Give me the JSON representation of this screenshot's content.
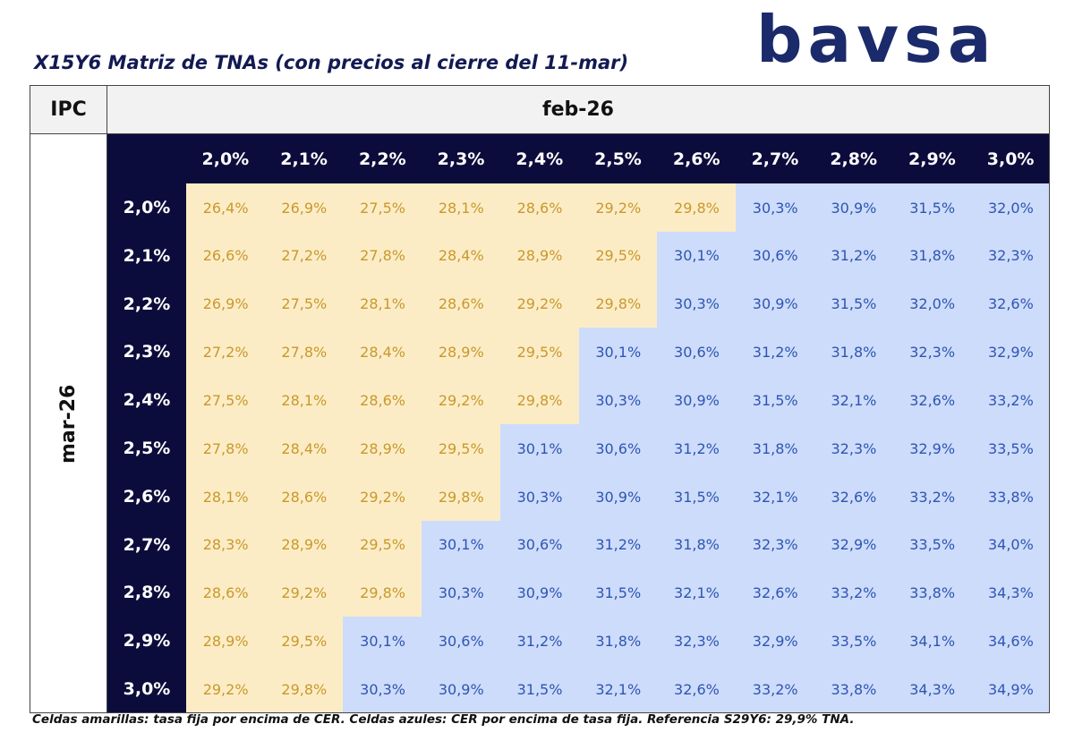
{
  "header": {
    "title": "X15Y6 Matriz de TNAs (con precios al cierre del 11-mar)",
    "logo": "bavsa"
  },
  "table": {
    "corner": "IPC",
    "column_group": "feb-26",
    "row_group": "mar-26",
    "columns": [
      "2,0%",
      "2,1%",
      "2,2%",
      "2,3%",
      "2,4%",
      "2,5%",
      "2,6%",
      "2,7%",
      "2,8%",
      "2,9%",
      "3,0%"
    ],
    "palette": {
      "yellow": {
        "fill": "#fcecc6",
        "text": "#c8992c"
      },
      "blue": {
        "fill": "#cddcfa",
        "text": "#2f55b3"
      }
    },
    "rows": [
      {
        "label": "2,0%",
        "cells": [
          "26,4%",
          "26,9%",
          "27,5%",
          "28,1%",
          "28,6%",
          "29,2%",
          "29,8%",
          "30,3%",
          "30,9%",
          "31,5%",
          "32,0%"
        ],
        "fills": [
          "yellow",
          "yellow",
          "yellow",
          "yellow",
          "yellow",
          "yellow",
          "yellow",
          "blue",
          "blue",
          "blue",
          "blue"
        ]
      },
      {
        "label": "2,1%",
        "cells": [
          "26,6%",
          "27,2%",
          "27,8%",
          "28,4%",
          "28,9%",
          "29,5%",
          "30,1%",
          "30,6%",
          "31,2%",
          "31,8%",
          "32,3%"
        ],
        "fills": [
          "yellow",
          "yellow",
          "yellow",
          "yellow",
          "yellow",
          "yellow",
          "blue",
          "blue",
          "blue",
          "blue",
          "blue"
        ]
      },
      {
        "label": "2,2%",
        "cells": [
          "26,9%",
          "27,5%",
          "28,1%",
          "28,6%",
          "29,2%",
          "29,8%",
          "30,3%",
          "30,9%",
          "31,5%",
          "32,0%",
          "32,6%"
        ],
        "fills": [
          "yellow",
          "yellow",
          "yellow",
          "yellow",
          "yellow",
          "yellow",
          "blue",
          "blue",
          "blue",
          "blue",
          "blue"
        ]
      },
      {
        "label": "2,3%",
        "cells": [
          "27,2%",
          "27,8%",
          "28,4%",
          "28,9%",
          "29,5%",
          "30,1%",
          "30,6%",
          "31,2%",
          "31,8%",
          "32,3%",
          "32,9%"
        ],
        "fills": [
          "yellow",
          "yellow",
          "yellow",
          "yellow",
          "yellow",
          "blue",
          "blue",
          "blue",
          "blue",
          "blue",
          "blue"
        ]
      },
      {
        "label": "2,4%",
        "cells": [
          "27,5%",
          "28,1%",
          "28,6%",
          "29,2%",
          "29,8%",
          "30,3%",
          "30,9%",
          "31,5%",
          "32,1%",
          "32,6%",
          "33,2%"
        ],
        "fills": [
          "yellow",
          "yellow",
          "yellow",
          "yellow",
          "yellow",
          "blue",
          "blue",
          "blue",
          "blue",
          "blue",
          "blue"
        ]
      },
      {
        "label": "2,5%",
        "cells": [
          "27,8%",
          "28,4%",
          "28,9%",
          "29,5%",
          "30,1%",
          "30,6%",
          "31,2%",
          "31,8%",
          "32,3%",
          "32,9%",
          "33,5%"
        ],
        "fills": [
          "yellow",
          "yellow",
          "yellow",
          "yellow",
          "blue",
          "blue",
          "blue",
          "blue",
          "blue",
          "blue",
          "blue"
        ]
      },
      {
        "label": "2,6%",
        "cells": [
          "28,1%",
          "28,6%",
          "29,2%",
          "29,8%",
          "30,3%",
          "30,9%",
          "31,5%",
          "32,1%",
          "32,6%",
          "33,2%",
          "33,8%"
        ],
        "fills": [
          "yellow",
          "yellow",
          "yellow",
          "yellow",
          "blue",
          "blue",
          "blue",
          "blue",
          "blue",
          "blue",
          "blue"
        ]
      },
      {
        "label": "2,7%",
        "cells": [
          "28,3%",
          "28,9%",
          "29,5%",
          "30,1%",
          "30,6%",
          "31,2%",
          "31,8%",
          "32,3%",
          "32,9%",
          "33,5%",
          "34,0%"
        ],
        "fills": [
          "yellow",
          "yellow",
          "yellow",
          "blue",
          "blue",
          "blue",
          "blue",
          "blue",
          "blue",
          "blue",
          "blue"
        ]
      },
      {
        "label": "2,8%",
        "cells": [
          "28,6%",
          "29,2%",
          "29,8%",
          "30,3%",
          "30,9%",
          "31,5%",
          "32,1%",
          "32,6%",
          "33,2%",
          "33,8%",
          "34,3%"
        ],
        "fills": [
          "yellow",
          "yellow",
          "yellow",
          "blue",
          "blue",
          "blue",
          "blue",
          "blue",
          "blue",
          "blue",
          "blue"
        ]
      },
      {
        "label": "2,9%",
        "cells": [
          "28,9%",
          "29,5%",
          "30,1%",
          "30,6%",
          "31,2%",
          "31,8%",
          "32,3%",
          "32,9%",
          "33,5%",
          "34,1%",
          "34,6%"
        ],
        "fills": [
          "yellow",
          "yellow",
          "blue",
          "blue",
          "blue",
          "blue",
          "blue",
          "blue",
          "blue",
          "blue",
          "blue"
        ]
      },
      {
        "label": "3,0%",
        "cells": [
          "29,2%",
          "29,8%",
          "30,3%",
          "30,9%",
          "31,5%",
          "32,1%",
          "32,6%",
          "33,2%",
          "33,8%",
          "34,3%",
          "34,9%"
        ],
        "fills": [
          "yellow",
          "yellow",
          "blue",
          "blue",
          "blue",
          "blue",
          "blue",
          "blue",
          "blue",
          "blue",
          "blue"
        ]
      }
    ]
  },
  "footnote": "Celdas amarillas: tasa fija por encima de CER. Celdas azules: CER por encima de tasa fija. Referencia S29Y6: 29,9% TNA."
}
